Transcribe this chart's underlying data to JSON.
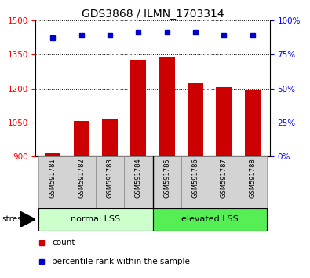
{
  "title": "GDS3868 / ILMN_1703314",
  "samples": [
    "GSM591781",
    "GSM591782",
    "GSM591783",
    "GSM591784",
    "GSM591785",
    "GSM591786",
    "GSM591787",
    "GSM591788"
  ],
  "counts": [
    915,
    1058,
    1065,
    1325,
    1342,
    1222,
    1207,
    1192
  ],
  "percentiles": [
    87,
    89,
    89,
    91,
    91,
    91,
    89,
    89
  ],
  "ylim_left": [
    900,
    1500
  ],
  "ylim_right": [
    0,
    100
  ],
  "yticks_left": [
    900,
    1050,
    1200,
    1350,
    1500
  ],
  "yticks_right": [
    0,
    25,
    50,
    75,
    100
  ],
  "bar_color": "#cc0000",
  "dot_color": "#0000cc",
  "group1_label": "normal LSS",
  "group2_label": "elevated LSS",
  "group1_color": "#ccffcc",
  "group2_color": "#55ee55",
  "label_bg_color": "#d3d3d3",
  "legend_count_label": "count",
  "legend_pct_label": "percentile rank within the sample",
  "title_fontsize": 10,
  "tick_fontsize": 7.5,
  "group_fontsize": 8,
  "legend_fontsize": 7.5,
  "sample_fontsize": 6
}
